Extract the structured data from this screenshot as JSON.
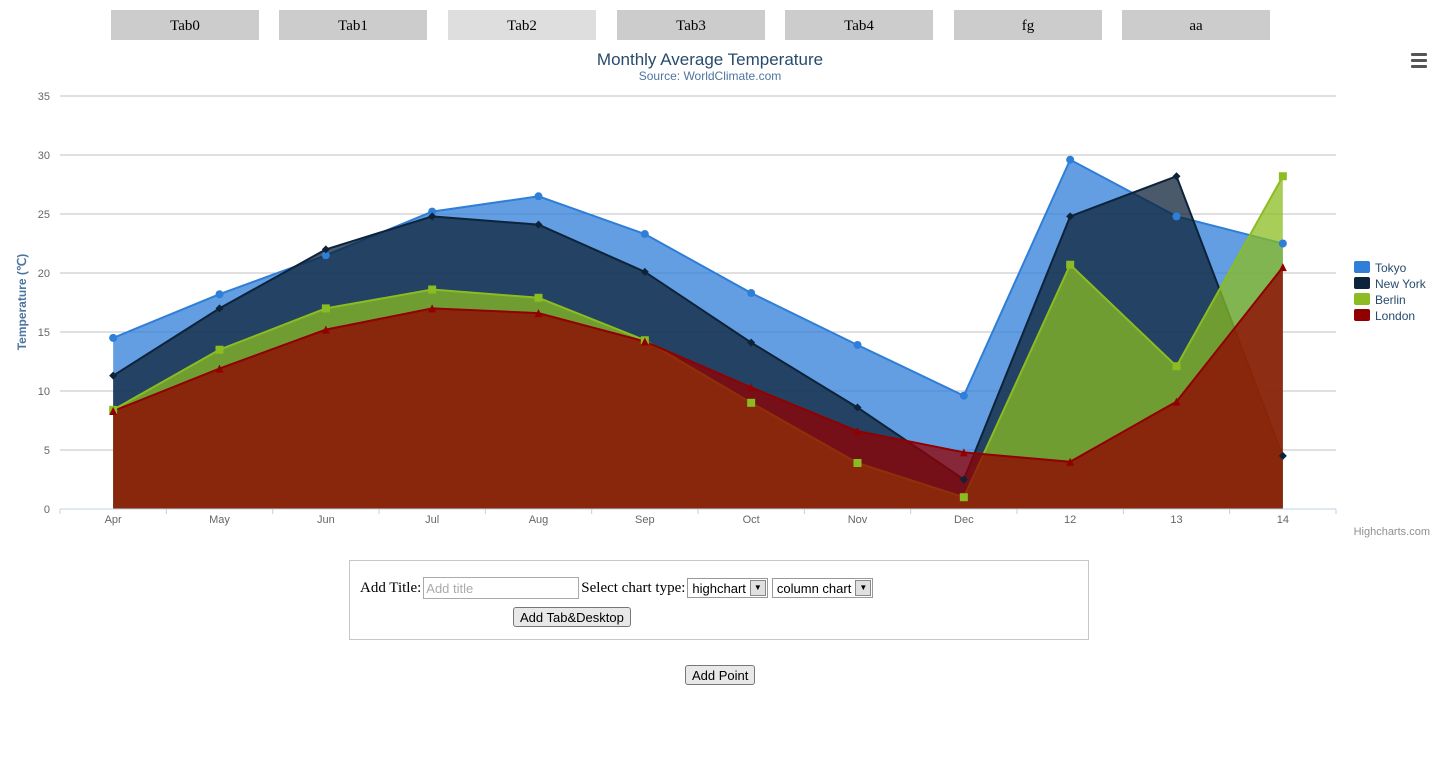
{
  "tabs": [
    {
      "label": "Tab0",
      "active": false
    },
    {
      "label": "Tab1",
      "active": false
    },
    {
      "label": "Tab2",
      "active": true
    },
    {
      "label": "Tab3",
      "active": false
    },
    {
      "label": "Tab4",
      "active": false
    },
    {
      "label": "fg",
      "active": false
    },
    {
      "label": "aa",
      "active": false
    }
  ],
  "chart_data": {
    "type": "area",
    "title": "Monthly Average Temperature",
    "subtitle": "Source: WorldClimate.com",
    "ylabel": "Temperature (℃)",
    "xlabel": "",
    "categories": [
      "Apr",
      "May",
      "Jun",
      "Jul",
      "Aug",
      "Sep",
      "Oct",
      "Nov",
      "Dec",
      "12",
      "13",
      "14"
    ],
    "ylim": [
      0,
      35
    ],
    "yticks": [
      0,
      5,
      10,
      15,
      20,
      25,
      30,
      35
    ],
    "grid": true,
    "legend_position": "right",
    "credits": "Highcharts.com",
    "series": [
      {
        "name": "Tokyo",
        "color": "#2f7ed8",
        "marker": "circle",
        "values": [
          14.5,
          18.2,
          21.5,
          25.2,
          26.5,
          23.3,
          18.3,
          13.9,
          9.6,
          29.6,
          24.8,
          22.5
        ]
      },
      {
        "name": "New York",
        "color": "#0d233a",
        "marker": "diamond",
        "values": [
          11.3,
          17.0,
          22.0,
          24.8,
          24.1,
          20.1,
          14.1,
          8.6,
          2.5,
          24.8,
          28.2,
          4.5
        ]
      },
      {
        "name": "Berlin",
        "color": "#8bbc21",
        "marker": "square",
        "values": [
          8.4,
          13.5,
          17.0,
          18.6,
          17.9,
          14.3,
          9.0,
          3.9,
          1.0,
          20.7,
          12.1,
          28.2
        ]
      },
      {
        "name": "London",
        "color": "#910000",
        "marker": "triangle",
        "values": [
          8.3,
          11.9,
          15.2,
          17.0,
          16.6,
          14.2,
          10.3,
          6.6,
          4.8,
          4.0,
          9.1,
          20.5
        ]
      }
    ]
  },
  "form": {
    "title_label": "Add Title:",
    "title_placeholder": "Add title",
    "chart_type_label": "Select chart type:",
    "library_select": "highchart",
    "type_select": "column chart",
    "add_tab_button": "Add Tab&Desktop"
  },
  "add_point_button": "Add Point"
}
